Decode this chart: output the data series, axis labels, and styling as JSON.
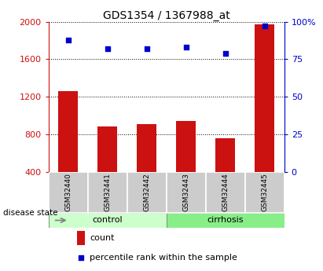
{
  "title": "GDS1354 / 1367988_at",
  "categories": [
    "GSM32440",
    "GSM32441",
    "GSM32442",
    "GSM32443",
    "GSM32444",
    "GSM32445"
  ],
  "counts": [
    1260,
    880,
    910,
    940,
    760,
    1970
  ],
  "percentiles": [
    88,
    82,
    82,
    83,
    79,
    97
  ],
  "bar_color": "#cc1111",
  "dot_color": "#0000cc",
  "ylim_left": [
    400,
    2000
  ],
  "ylim_right": [
    0,
    100
  ],
  "yticks_left": [
    400,
    800,
    1200,
    1600,
    2000
  ],
  "yticks_right": [
    0,
    25,
    50,
    75,
    100
  ],
  "yticklabels_right": [
    "0",
    "25",
    "50",
    "75",
    "100%"
  ],
  "control_color": "#ccffcc",
  "cirrhosis_color": "#88ee88",
  "group_box_color": "#cccccc",
  "legend_count_label": "count",
  "legend_percentile_label": "percentile rank within the sample",
  "disease_state_label": "disease state",
  "control_label": "control",
  "cirrhosis_label": "cirrhosis",
  "n_control": 3,
  "n_cirrhosis": 3
}
